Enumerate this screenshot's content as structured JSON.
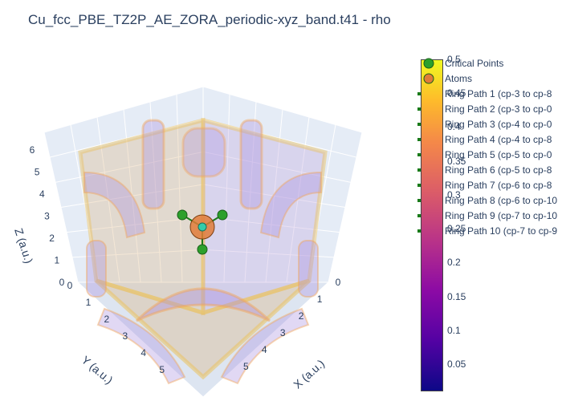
{
  "chart_data": {
    "type": "3d-isosurface",
    "title": "Cu_fcc_PBE_TZ2P_AE_ZORA_periodic-xyz_band.t41 - rho",
    "axes": {
      "x": {
        "label": "X (a.u.)",
        "ticks": [
          "0",
          "1",
          "2",
          "3",
          "4",
          "5"
        ],
        "range": [
          0,
          6.8
        ]
      },
      "y": {
        "label": "Y (a.u.)",
        "ticks": [
          "0",
          "1",
          "2",
          "3",
          "4",
          "5"
        ],
        "range": [
          0,
          6.8
        ]
      },
      "z": {
        "label": "Z (a.u.)",
        "ticks": [
          "0",
          "1",
          "2",
          "3",
          "4",
          "5",
          "6"
        ],
        "range": [
          0,
          6.8
        ]
      }
    },
    "colorbar": {
      "title": "",
      "colorscale": "Plasma",
      "range": [
        0.01,
        0.5
      ],
      "ticks": [
        "0.05",
        "0.1",
        "0.15",
        "0.2",
        "0.25",
        "0.3",
        "0.35",
        "0.4",
        "0.45",
        "0.5"
      ],
      "tick_values": [
        0.05,
        0.1,
        0.15,
        0.2,
        0.25,
        0.3,
        0.35,
        0.4,
        0.45,
        0.5
      ]
    },
    "legend_position": "right",
    "series": [
      {
        "name": "Critical Points",
        "kind": "markers",
        "color": "#2ca02c"
      },
      {
        "name": "Atoms",
        "kind": "markers",
        "color": "#e07b39"
      },
      {
        "name": "Ring Path 1 (cp-3 to cp-8",
        "kind": "lines",
        "color": "#1a7a1a"
      },
      {
        "name": "Ring Path 2 (cp-3 to cp-0",
        "kind": "lines",
        "color": "#1a7a1a"
      },
      {
        "name": "Ring Path 3 (cp-4 to cp-0",
        "kind": "lines",
        "color": "#1a7a1a"
      },
      {
        "name": "Ring Path 4 (cp-4 to cp-8",
        "kind": "lines",
        "color": "#1a7a1a"
      },
      {
        "name": "Ring Path 5 (cp-5 to cp-0",
        "kind": "lines",
        "color": "#1a7a1a"
      },
      {
        "name": "Ring Path 6 (cp-5 to cp-8",
        "kind": "lines",
        "color": "#1a7a1a"
      },
      {
        "name": "Ring Path 7 (cp-6 to cp-8",
        "kind": "lines",
        "color": "#1a7a1a"
      },
      {
        "name": "Ring Path 8 (cp-6 to cp-10",
        "kind": "lines",
        "color": "#1a7a1a"
      },
      {
        "name": "Ring Path 9 (cp-7 to cp-10",
        "kind": "lines",
        "color": "#1a7a1a"
      },
      {
        "name": "Ring Path 10 (cp-7 to cp-9",
        "kind": "lines",
        "color": "#1a7a1a"
      }
    ]
  }
}
